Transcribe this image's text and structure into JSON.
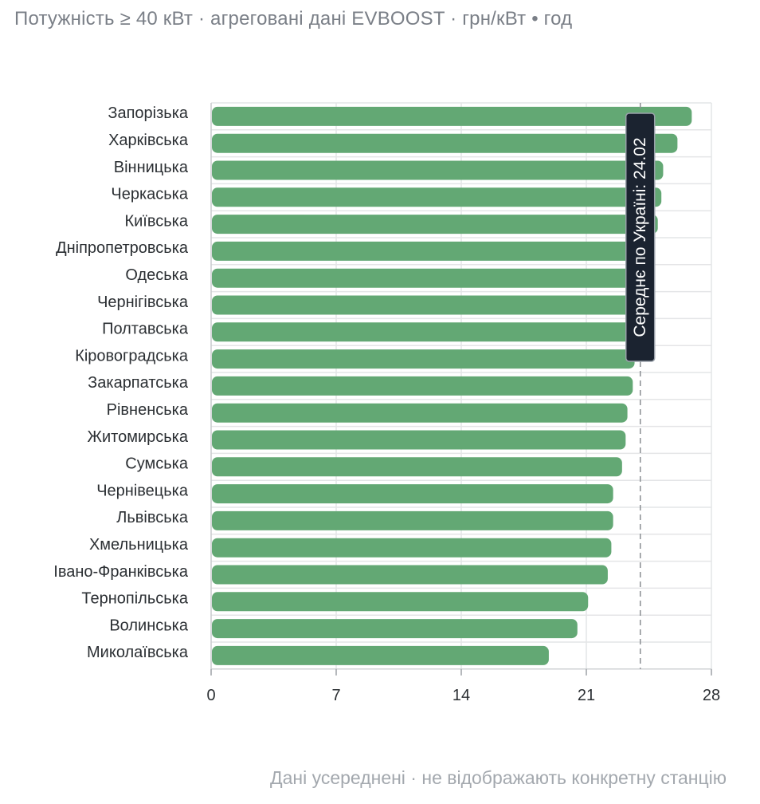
{
  "header": {
    "subtitle": "Потужність ≥ 40 кВт · агреговані дані EVBOOST · грн/кВт • год"
  },
  "footer": {
    "note": "Дані усереднені · не відображають конкретну станцію"
  },
  "chart_data": {
    "type": "bar",
    "orientation": "horizontal",
    "title": "",
    "xlabel": "",
    "ylabel": "",
    "xlim": [
      0,
      28
    ],
    "xticks": [
      0,
      7,
      14,
      21,
      28
    ],
    "grid": true,
    "categories": [
      "Запорізька",
      "Харківська",
      "Вінницька",
      "Черкаська",
      "Київська",
      "Дніпропетровська",
      "Одеська",
      "Чернігівська",
      "Полтавська",
      "Кіровоградська",
      "Закарпатська",
      "Рівненська",
      "Житомирська",
      "Сумська",
      "Чернівецька",
      "Львівська",
      "Хмельницька",
      "Івано-Франківська",
      "Тернопільська",
      "Волинська",
      "Миколаївська"
    ],
    "values": [
      26.9,
      26.1,
      25.3,
      25.2,
      25.0,
      24.8,
      24.4,
      24.1,
      23.9,
      23.7,
      23.6,
      23.3,
      23.2,
      23.0,
      22.5,
      22.5,
      22.4,
      22.2,
      21.1,
      20.5,
      18.9
    ],
    "bar_color": "#63a874",
    "average": {
      "value": 24.02,
      "label": "Середнє по Україні: 24.02"
    }
  }
}
